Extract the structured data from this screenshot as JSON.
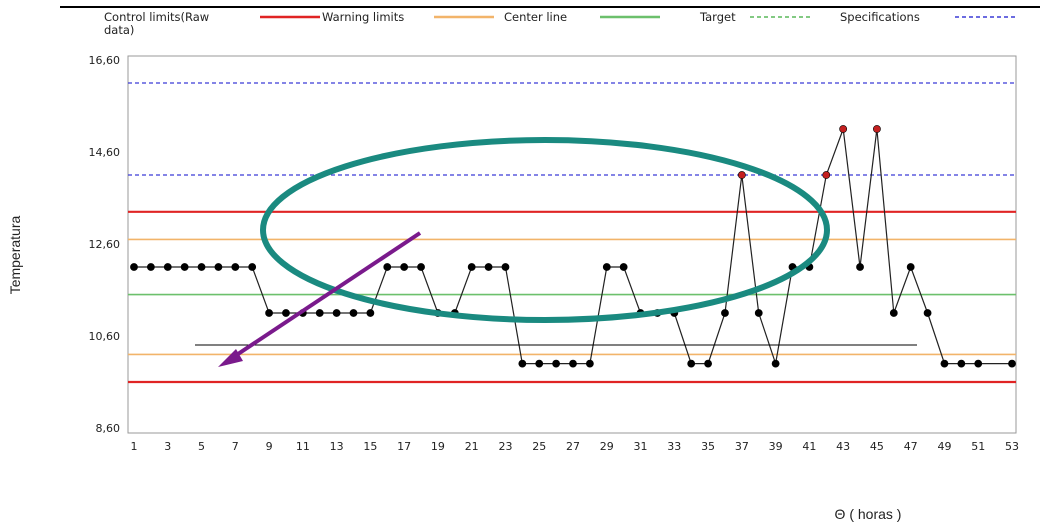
{
  "chart_data": {
    "type": "line",
    "xlabel": "Θ ( horas )",
    "ylabel": "Temperatura",
    "ylim": [
      8.6,
      16.6
    ],
    "xlim": [
      1,
      53
    ],
    "y_ticks": [
      "8,60",
      "10,60",
      "12,60",
      "14,60",
      "16,60"
    ],
    "y_tick_values": [
      8.6,
      10.6,
      12.6,
      14.6,
      16.6
    ],
    "x_ticks": [
      "1",
      "3",
      "5",
      "7",
      "9",
      "11",
      "13",
      "15",
      "17",
      "19",
      "21",
      "23",
      "25",
      "27",
      "29",
      "31",
      "33",
      "35",
      "37",
      "39",
      "41",
      "43",
      "45",
      "47",
      "49",
      "51",
      "53"
    ],
    "legend_position": "top",
    "legend": [
      {
        "label": "Control limits(Raw data)",
        "color": "#e02424",
        "style": "solid"
      },
      {
        "label": "Warning limits",
        "color": "#f2b46a",
        "style": "solid"
      },
      {
        "label": "Center line",
        "color": "#6cc06c",
        "style": "solid"
      },
      {
        "label": "Target",
        "color": "#5ab85a",
        "style": "dashed"
      },
      {
        "label": "Specifications",
        "color": "#3b3bd6",
        "style": "dashed"
      }
    ],
    "reference_lines": [
      {
        "kind": "specification",
        "y": 16.1,
        "color": "#3b3bd6",
        "style": "dashed"
      },
      {
        "kind": "specification",
        "y": 14.1,
        "color": "#3b3bd6",
        "style": "dashed"
      },
      {
        "kind": "control-limit",
        "y": 13.3,
        "color": "#e02424",
        "style": "solid"
      },
      {
        "kind": "warning-limit",
        "y": 12.7,
        "color": "#f2b46a",
        "style": "solid"
      },
      {
        "kind": "center-line",
        "y": 11.5,
        "color": "#6cc06c",
        "style": "solid"
      },
      {
        "kind": "warning-limit",
        "y": 10.2,
        "color": "#f2b46a",
        "style": "solid"
      },
      {
        "kind": "control-limit",
        "y": 9.6,
        "color": "#e02424",
        "style": "solid"
      }
    ],
    "series": [
      {
        "x": [
          1,
          2,
          3,
          4,
          5,
          6,
          7,
          8,
          9,
          10,
          11,
          12,
          13,
          14,
          15,
          16,
          17,
          18,
          19,
          20,
          21,
          22,
          23,
          24,
          25,
          26,
          27,
          28,
          29,
          30,
          31,
          32,
          33,
          34,
          35,
          36,
          37,
          38,
          39,
          40,
          41,
          42,
          43,
          44,
          45,
          46,
          47,
          48,
          49,
          50,
          51,
          53
        ],
        "values": [
          12.1,
          12.1,
          12.1,
          12.1,
          12.1,
          12.1,
          12.1,
          12.1,
          11.1,
          11.1,
          11.1,
          11.1,
          11.1,
          11.1,
          11.1,
          12.1,
          12.1,
          12.1,
          11.1,
          11.1,
          12.1,
          12.1,
          12.1,
          10.0,
          10.0,
          10.0,
          10.0,
          10.0,
          12.1,
          12.1,
          11.1,
          11.1,
          11.1,
          10.0,
          10.0,
          11.1,
          14.1,
          11.1,
          10.0,
          12.1,
          12.1,
          14.1,
          15.1,
          12.1,
          15.1,
          11.1,
          12.1,
          11.1,
          10.0,
          10.0,
          10.0,
          10.0
        ],
        "out_of_spec_points": [
          37,
          42,
          43,
          45
        ]
      }
    ]
  }
}
